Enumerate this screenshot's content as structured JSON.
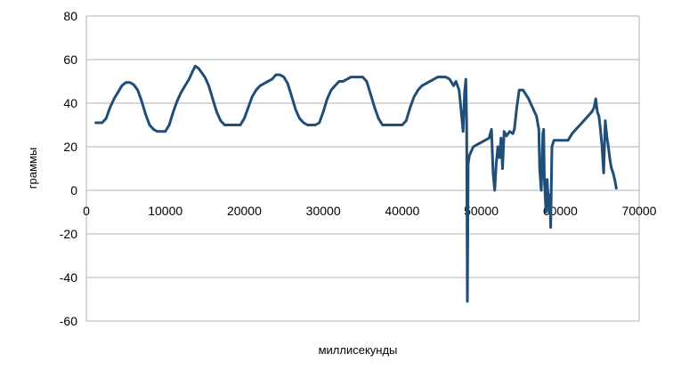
{
  "chart_data": {
    "type": "line",
    "title": "",
    "xlabel": "миллисекунды",
    "ylabel": "граммы",
    "xlim": [
      0,
      70000
    ],
    "ylim": [
      -60,
      80
    ],
    "x_ticks": [
      0,
      10000,
      20000,
      30000,
      40000,
      50000,
      60000,
      70000
    ],
    "y_ticks": [
      -60,
      -40,
      -20,
      0,
      20,
      40,
      60,
      80
    ],
    "grid": "horizontal",
    "legend": "none",
    "series": [
      {
        "color": "#1f4e79",
        "points": [
          [
            1200,
            31
          ],
          [
            2000,
            31
          ],
          [
            2500,
            33
          ],
          [
            3000,
            38
          ],
          [
            3500,
            42
          ],
          [
            4000,
            45
          ],
          [
            4500,
            48
          ],
          [
            5000,
            49.5
          ],
          [
            5500,
            49.5
          ],
          [
            6000,
            48.5
          ],
          [
            6500,
            46
          ],
          [
            7000,
            41
          ],
          [
            7500,
            35
          ],
          [
            8000,
            30
          ],
          [
            8500,
            28
          ],
          [
            9000,
            27
          ],
          [
            10000,
            27
          ],
          [
            10500,
            30
          ],
          [
            11000,
            36
          ],
          [
            11500,
            41
          ],
          [
            12000,
            45
          ],
          [
            12500,
            48
          ],
          [
            13000,
            51
          ],
          [
            13500,
            55
          ],
          [
            13800,
            57
          ],
          [
            14200,
            56
          ],
          [
            15000,
            52
          ],
          [
            15500,
            48
          ],
          [
            16000,
            42
          ],
          [
            16500,
            36
          ],
          [
            17000,
            32
          ],
          [
            17500,
            30
          ],
          [
            18000,
            30
          ],
          [
            19500,
            30
          ],
          [
            20000,
            33
          ],
          [
            20500,
            38
          ],
          [
            21000,
            43
          ],
          [
            21500,
            46
          ],
          [
            22000,
            48
          ],
          [
            22500,
            49
          ],
          [
            23000,
            50
          ],
          [
            23500,
            51
          ],
          [
            24000,
            53
          ],
          [
            24500,
            53
          ],
          [
            25000,
            52
          ],
          [
            25500,
            49
          ],
          [
            26000,
            43
          ],
          [
            26500,
            37
          ],
          [
            27000,
            33
          ],
          [
            27500,
            31
          ],
          [
            28000,
            30
          ],
          [
            29000,
            30
          ],
          [
            29500,
            31
          ],
          [
            30000,
            36
          ],
          [
            30500,
            42
          ],
          [
            31000,
            46
          ],
          [
            31500,
            48
          ],
          [
            32000,
            50
          ],
          [
            32500,
            50
          ],
          [
            33000,
            51
          ],
          [
            33500,
            52
          ],
          [
            35000,
            52
          ],
          [
            35500,
            50
          ],
          [
            36000,
            44
          ],
          [
            36500,
            38
          ],
          [
            37000,
            33
          ],
          [
            37500,
            30
          ],
          [
            38000,
            30
          ],
          [
            40000,
            30
          ],
          [
            40500,
            32
          ],
          [
            41000,
            38
          ],
          [
            41500,
            43
          ],
          [
            42000,
            46
          ],
          [
            42500,
            48
          ],
          [
            43000,
            49
          ],
          [
            43500,
            50
          ],
          [
            44000,
            51
          ],
          [
            44500,
            52
          ],
          [
            45500,
            52
          ],
          [
            46000,
            51
          ],
          [
            46500,
            48
          ],
          [
            46800,
            50
          ],
          [
            47200,
            46
          ],
          [
            47500,
            35
          ],
          [
            47700,
            27
          ],
          [
            47900,
            45
          ],
          [
            48050,
            51
          ],
          [
            48150,
            30
          ],
          [
            48250,
            -51
          ],
          [
            48350,
            12
          ],
          [
            48500,
            16
          ],
          [
            49000,
            20
          ],
          [
            49500,
            21
          ],
          [
            50000,
            22
          ],
          [
            50500,
            23
          ],
          [
            51000,
            24
          ],
          [
            51300,
            28
          ],
          [
            51500,
            8
          ],
          [
            51700,
            0
          ],
          [
            51900,
            12
          ],
          [
            52100,
            20
          ],
          [
            52300,
            15
          ],
          [
            52500,
            24
          ],
          [
            52700,
            10
          ],
          [
            52900,
            27
          ],
          [
            53200,
            25
          ],
          [
            53600,
            27
          ],
          [
            54000,
            26
          ],
          [
            54200,
            28
          ],
          [
            54500,
            38
          ],
          [
            54800,
            46
          ],
          [
            55300,
            46
          ],
          [
            56000,
            42
          ],
          [
            56500,
            38
          ],
          [
            57000,
            34
          ],
          [
            57300,
            28
          ],
          [
            57400,
            10
          ],
          [
            57600,
            0
          ],
          [
            57800,
            26
          ],
          [
            57900,
            28
          ],
          [
            58000,
            5
          ],
          [
            58200,
            -10
          ],
          [
            58350,
            5
          ],
          [
            58500,
            -5
          ],
          [
            58600,
            -10
          ],
          [
            58700,
            -2
          ],
          [
            58800,
            -17
          ],
          [
            58950,
            20
          ],
          [
            59200,
            23
          ],
          [
            59800,
            23
          ],
          [
            60500,
            23
          ],
          [
            61000,
            23
          ],
          [
            61500,
            26
          ],
          [
            62000,
            28
          ],
          [
            62500,
            30
          ],
          [
            63000,
            32
          ],
          [
            63500,
            34
          ],
          [
            64000,
            36
          ],
          [
            64300,
            38
          ],
          [
            64500,
            42
          ],
          [
            64700,
            36
          ],
          [
            64900,
            34
          ],
          [
            65100,
            28
          ],
          [
            65300,
            20
          ],
          [
            65500,
            8
          ],
          [
            65700,
            32
          ],
          [
            65900,
            25
          ],
          [
            66100,
            20
          ],
          [
            66300,
            14
          ],
          [
            66500,
            10
          ],
          [
            66700,
            8
          ],
          [
            66900,
            5
          ],
          [
            67100,
            1
          ]
        ]
      }
    ]
  }
}
